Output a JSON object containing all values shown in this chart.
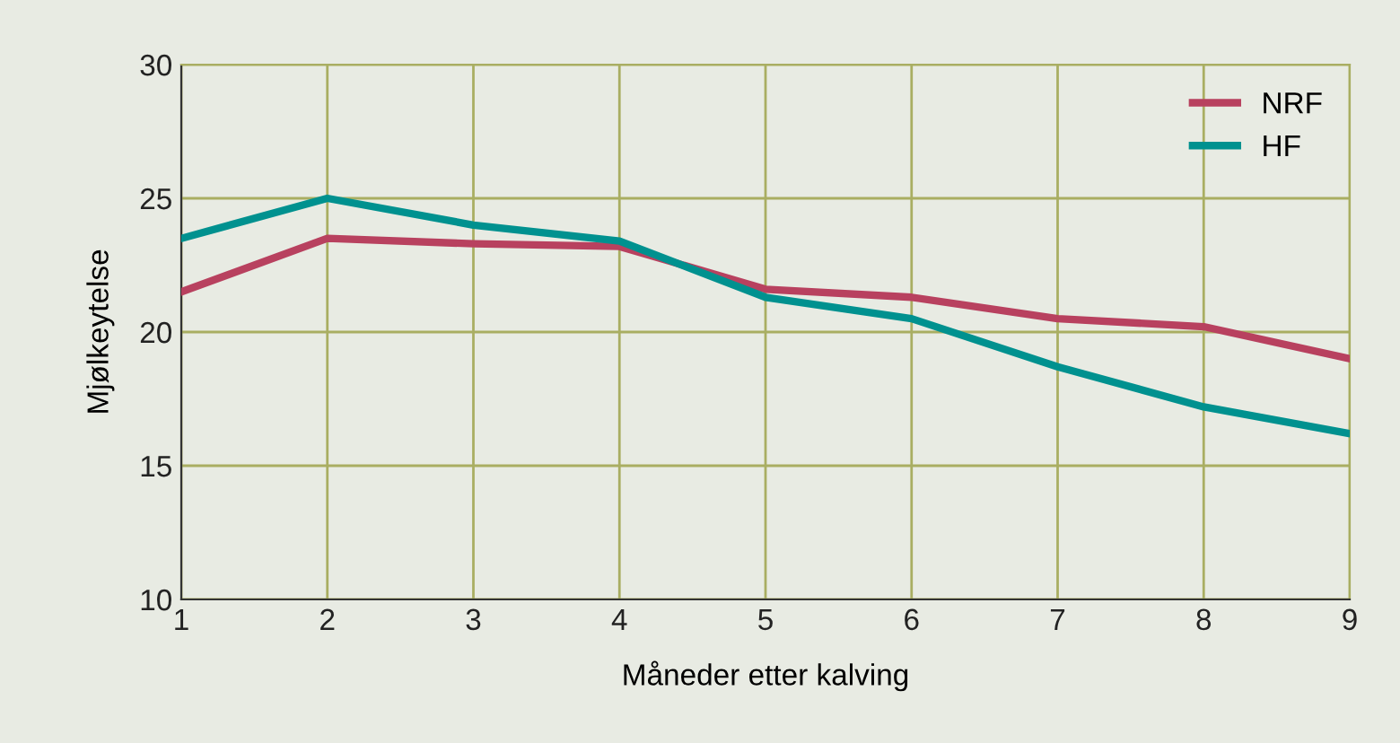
{
  "chart_data": {
    "type": "line",
    "xlabel": "Måneder etter kalving",
    "ylabel": "Mjølkeytelse",
    "x": [
      1,
      2,
      3,
      4,
      5,
      6,
      7,
      8,
      9
    ],
    "series": [
      {
        "name": "NRF",
        "color": "#b8415f",
        "values": [
          21.5,
          23.5,
          23.3,
          23.2,
          21.6,
          21.3,
          20.5,
          20.2,
          19.0
        ]
      },
      {
        "name": "HF",
        "color": "#00918f",
        "values": [
          23.5,
          25.0,
          24.0,
          23.4,
          21.3,
          20.5,
          18.7,
          17.2,
          16.2
        ]
      }
    ],
    "xlim": [
      1,
      9
    ],
    "xticks": [
      1,
      2,
      3,
      4,
      5,
      6,
      7,
      8,
      9
    ],
    "ylim": [
      10,
      30
    ],
    "yticks": [
      10,
      15,
      20,
      25,
      30
    ],
    "grid": true,
    "legend": "top right",
    "marker": "none",
    "line_style": "solid"
  }
}
